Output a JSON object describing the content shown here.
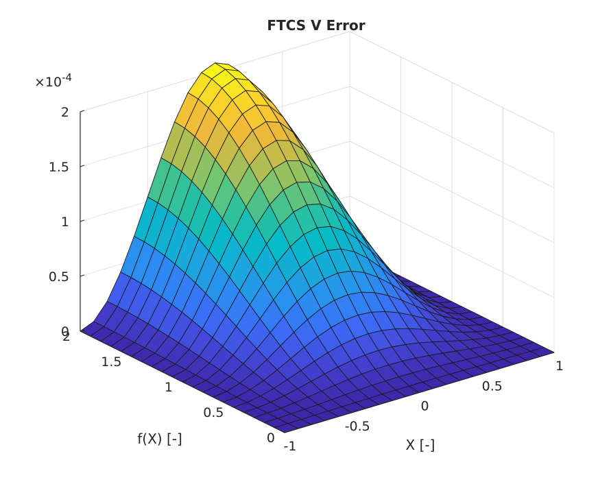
{
  "chart_data": {
    "type": "surface",
    "title": "FTCS V Error",
    "xlabel": "X [-]",
    "ylabel": "f(X) [-]",
    "zlabel": "",
    "xlim": [
      -1,
      1
    ],
    "ylim": [
      0,
      2
    ],
    "zlim": [
      0,
      2
    ],
    "z_multiplier_label": "×10",
    "z_multiplier_exponent": "-4",
    "xticks": [
      {
        "value": -1,
        "label": "-1"
      },
      {
        "value": -0.5,
        "label": "-0.5"
      },
      {
        "value": 0,
        "label": "0"
      },
      {
        "value": 0.5,
        "label": "0.5"
      },
      {
        "value": 1,
        "label": "1"
      }
    ],
    "yticks": [
      {
        "value": 0,
        "label": "0"
      },
      {
        "value": 0.5,
        "label": "0.5"
      },
      {
        "value": 1,
        "label": "1"
      },
      {
        "value": 1.5,
        "label": "1.5"
      },
      {
        "value": 2,
        "label": "2"
      }
    ],
    "zticks": [
      {
        "value": 0,
        "label": "0"
      },
      {
        "value": 0.5,
        "label": "0.5"
      },
      {
        "value": 1,
        "label": "1"
      },
      {
        "value": 1.5,
        "label": "1.5"
      },
      {
        "value": 2,
        "label": "2"
      }
    ],
    "grid": true,
    "colormap": "parula",
    "colormap_stops": [
      "#3e26a8",
      "#4547d8",
      "#3d6cf8",
      "#2b8ef0",
      "#19a9dc",
      "#06bac6",
      "#2ac19f",
      "#74c472",
      "#b9bd4f",
      "#f0b93a",
      "#f9d32a",
      "#f9fb15"
    ],
    "mesh": {
      "x_count": 21,
      "y_count": 21,
      "description": "error magnitude rises from 0 at the boundaries to a single peak near X = 0 at f(X) = 2",
      "peak": {
        "x": 0,
        "y": 2,
        "z": 2.08
      },
      "boundary_value": 0
    }
  }
}
